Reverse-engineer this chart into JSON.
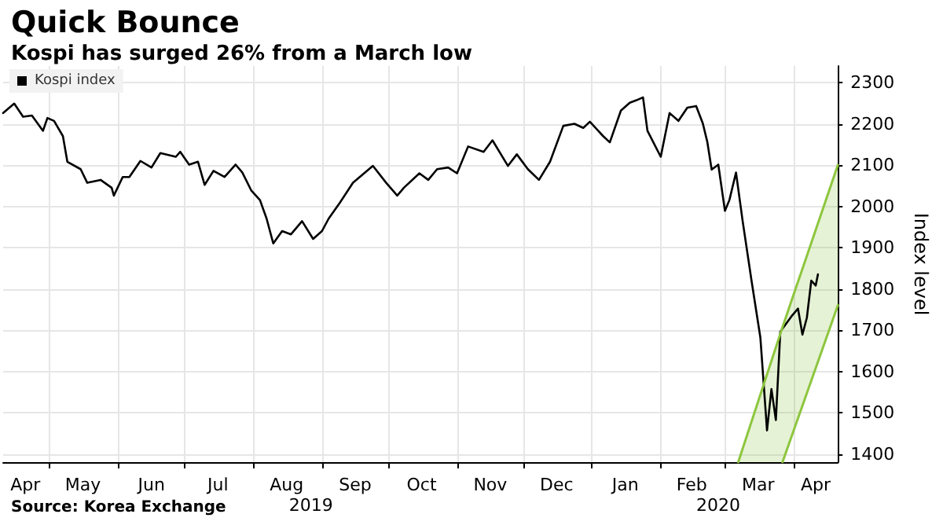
{
  "chart_data": {
    "type": "line",
    "title": "Quick Bounce",
    "subtitle": "Kospi has surged 26% from a March low",
    "ylabel": "Index level",
    "annotations": [
      "Source: Korea Exchange"
    ],
    "x2lim": [
      "2019-04-10",
      "2020-04-21"
    ],
    "x2ticks": [
      {
        "value": "2019-08-27",
        "label": "2019"
      },
      {
        "value": "2020-02-27",
        "label": "2020"
      }
    ],
    "xlim": [
      "2019-04-10",
      "2020-04-21"
    ],
    "xticks": [
      {
        "value": "2019-04-20",
        "label": "Apr"
      },
      {
        "value": "2019-05-01",
        "label": null
      },
      {
        "value": "2019-05-16",
        "label": "May"
      },
      {
        "value": "2019-06-01",
        "label": null
      },
      {
        "value": "2019-06-16",
        "label": "Jun"
      },
      {
        "value": "2019-07-01",
        "label": null
      },
      {
        "value": "2019-07-16",
        "label": "Jul"
      },
      {
        "value": "2019-08-01",
        "label": null
      },
      {
        "value": "2019-08-16",
        "label": "Aug"
      },
      {
        "value": "2019-09-01",
        "label": null
      },
      {
        "value": "2019-09-16",
        "label": "Sep"
      },
      {
        "value": "2019-10-01",
        "label": null
      },
      {
        "value": "2019-10-16",
        "label": "Oct"
      },
      {
        "value": "2019-11-01",
        "label": null
      },
      {
        "value": "2019-11-16",
        "label": "Nov"
      },
      {
        "value": "2019-12-01",
        "label": null
      },
      {
        "value": "2019-12-16",
        "label": "Dec"
      },
      {
        "value": "2020-01-01",
        "label": null
      },
      {
        "value": "2020-01-16",
        "label": "Jan"
      },
      {
        "value": "2020-02-01",
        "label": null
      },
      {
        "value": "2020-02-15",
        "label": "Feb"
      },
      {
        "value": "2020-03-01",
        "label": null
      },
      {
        "value": "2020-03-16",
        "label": "Mar"
      },
      {
        "value": "2020-04-01",
        "label": null
      },
      {
        "value": "2020-04-11",
        "label": "Apr"
      }
    ],
    "ylim": [
      1380,
      2340
    ],
    "yticks": [
      1400,
      1500,
      1600,
      1700,
      1800,
      1900,
      2000,
      2100,
      2200,
      2300
    ],
    "grid": true,
    "legend": "top left",
    "series": [
      {
        "name": "Kospi index",
        "color": "#000000",
        "x": [
          "2019-04-10",
          "2019-04-15",
          "2019-04-19",
          "2019-04-23",
          "2019-04-28",
          "2019-04-30",
          "2019-05-03",
          "2019-05-07",
          "2019-05-09",
          "2019-05-15",
          "2019-05-18",
          "2019-05-24",
          "2019-05-29",
          "2019-05-30",
          "2019-06-03",
          "2019-06-06",
          "2019-06-11",
          "2019-06-16",
          "2019-06-20",
          "2019-06-27",
          "2019-06-29",
          "2019-07-03",
          "2019-07-07",
          "2019-07-10",
          "2019-07-14",
          "2019-07-19",
          "2019-07-24",
          "2019-07-27",
          "2019-07-31",
          "2019-08-04",
          "2019-08-07",
          "2019-08-10",
          "2019-08-14",
          "2019-08-18",
          "2019-08-23",
          "2019-08-28",
          "2019-09-01",
          "2019-09-04",
          "2019-09-09",
          "2019-09-15",
          "2019-09-24",
          "2019-09-30",
          "2019-10-05",
          "2019-10-08",
          "2019-10-15",
          "2019-10-19",
          "2019-10-23",
          "2019-10-28",
          "2019-11-01",
          "2019-11-06",
          "2019-11-13",
          "2019-11-17",
          "2019-11-24",
          "2019-11-28",
          "2019-12-03",
          "2019-12-08",
          "2019-12-13",
          "2019-12-19",
          "2019-12-24",
          "2019-12-28",
          "2019-12-31",
          "2020-01-06",
          "2020-01-09",
          "2020-01-14",
          "2020-01-18",
          "2020-01-21",
          "2020-01-24",
          "2020-01-26",
          "2020-02-01",
          "2020-02-05",
          "2020-02-09",
          "2020-02-13",
          "2020-02-17",
          "2020-02-20",
          "2020-02-22",
          "2020-02-24",
          "2020-02-27",
          "2020-03-01",
          "2020-03-03",
          "2020-03-06",
          "2020-03-09",
          "2020-03-13",
          "2020-03-17",
          "2020-03-20",
          "2020-03-22",
          "2020-03-24",
          "2020-03-26",
          "2020-03-31",
          "2020-04-03",
          "2020-04-05",
          "2020-04-07",
          "2020-04-09",
          "2020-04-11",
          "2020-04-12"
        ],
        "values": [
          2226,
          2249,
          2217,
          2220,
          2183,
          2214,
          2207,
          2170,
          2108,
          2090,
          2057,
          2064,
          2045,
          2026,
          2071,
          2071,
          2110,
          2094,
          2129,
          2120,
          2132,
          2101,
          2108,
          2052,
          2086,
          2071,
          2101,
          2082,
          2039,
          2015,
          1970,
          1910,
          1940,
          1932,
          1964,
          1921,
          1940,
          1970,
          2008,
          2057,
          2098,
          2057,
          2026,
          2045,
          2080,
          2064,
          2090,
          2094,
          2080,
          2145,
          2132,
          2160,
          2098,
          2126,
          2090,
          2064,
          2108,
          2195,
          2200,
          2190,
          2205,
          2170,
          2155,
          2232,
          2251,
          2257,
          2264,
          2183,
          2120,
          2226,
          2207,
          2239,
          2243,
          2201,
          2157,
          2089,
          2101,
          1989,
          2015,
          2082,
          1964,
          1820,
          1682,
          1457,
          1557,
          1482,
          1696,
          1733,
          1752,
          1689,
          1730,
          1820,
          1808,
          1835
        ]
      },
      {
        "color": "#8dc63f",
        "x": [
          "2020-03-07",
          "2020-03-27",
          "2020-04-21"
        ],
        "values": [
          1380,
          1707,
          2100
        ],
        "lower": [
          1380,
          1380,
          1760
        ],
        "upper": [
          1380,
          1707,
          2100
        ]
      },
      {
        "color": "#8dc63f",
        "x": [
          "2020-03-27",
          "2020-04-21"
        ],
        "values": [
          1380,
          1760
        ]
      }
    ]
  }
}
